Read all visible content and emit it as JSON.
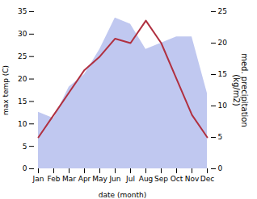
{
  "chart_data": {
    "type": "line",
    "xlabel": "date (month)",
    "ylabel": "max temp (C)",
    "y2label": "med. precipitation\n(kg/m2)",
    "categories": [
      "Jan",
      "Feb",
      "Mar",
      "Apr",
      "May",
      "Jun",
      "Jul",
      "Aug",
      "Sep",
      "Oct",
      "Nov",
      "Dec"
    ],
    "series": [
      {
        "type": "area",
        "color": "#c0c8f0",
        "axis": "y2",
        "values": [
          9,
          8,
          13,
          15,
          19,
          24,
          23,
          19,
          20,
          21,
          21,
          12
        ]
      },
      {
        "type": "line",
        "color": "#b03040",
        "values": [
          7,
          12,
          17,
          22,
          25,
          29,
          28,
          33,
          28,
          20,
          12,
          7
        ]
      }
    ],
    "ylim": [
      0,
      35
    ],
    "yticks": [
      0,
      5,
      10,
      15,
      20,
      25,
      30,
      35
    ],
    "y2lim": [
      0,
      25
    ],
    "y2ticks": [
      0,
      5,
      10,
      15,
      20,
      25
    ]
  }
}
